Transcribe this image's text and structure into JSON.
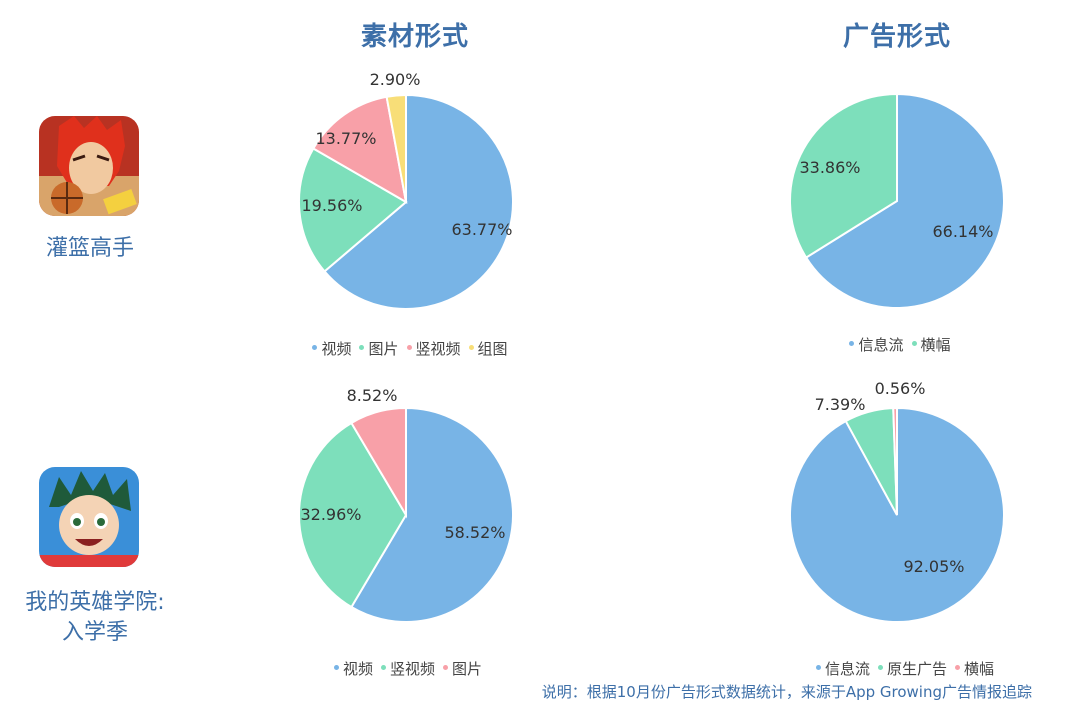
{
  "headers": {
    "material": "素材形式",
    "ad_form": "广告形式"
  },
  "games": [
    {
      "name": "灌篮高手",
      "icon": "slam-dunk-app-icon"
    },
    {
      "name_line1": "我的英雄学院:",
      "name_line2": "入学季",
      "icon": "my-hero-academia-app-icon"
    }
  ],
  "footnote": "说明：根据10月份广告形式数据统计，来源于App Growing广告情报追踪",
  "colors": {
    "视频": "#78b4e6",
    "信息流": "#78b4e6",
    "图片": "#7ddfbb",
    "横幅": "#7ddfbb",
    "竖视频": "#f8a0a8",
    "组图": "#f8de78",
    "原生广告": "#7ddfbb"
  },
  "chart_data": [
    {
      "type": "pie",
      "id": "pie-1",
      "categories": [
        "视频",
        "图片",
        "竖视频",
        "组图"
      ],
      "values": [
        63.77,
        19.56,
        13.77,
        2.9
      ],
      "labels": [
        "63.77%",
        "19.56%",
        "13.77%",
        "2.90%"
      ],
      "slice_colors": [
        "#78b4e6",
        "#7ddfbb",
        "#f8a0a8",
        "#f8de78"
      ],
      "legend": [
        "视频",
        "图片",
        "竖视频",
        "组图"
      ],
      "legend_colors": [
        "#78b4e6",
        "#7ddfbb",
        "#f8a0a8",
        "#f8de78"
      ]
    },
    {
      "type": "pie",
      "id": "pie-2",
      "categories": [
        "信息流",
        "横幅"
      ],
      "values": [
        66.14,
        33.86
      ],
      "labels": [
        "66.14%",
        "33.86%"
      ],
      "slice_colors": [
        "#78b4e6",
        "#7ddfbb"
      ],
      "legend": [
        "信息流",
        "横幅"
      ],
      "legend_colors": [
        "#78b4e6",
        "#7ddfbb"
      ]
    },
    {
      "type": "pie",
      "id": "pie-3",
      "categories": [
        "视频",
        "竖视频",
        "图片"
      ],
      "values": [
        58.52,
        32.96,
        8.52
      ],
      "labels": [
        "58.52%",
        "32.96%",
        "8.52%"
      ],
      "slice_colors": [
        "#78b4e6",
        "#7ddfbb",
        "#f8a0a8"
      ],
      "legend": [
        "视频",
        "竖视频",
        "图片"
      ],
      "legend_colors": [
        "#78b4e6",
        "#7ddfbb",
        "#f8a0a8"
      ]
    },
    {
      "type": "pie",
      "id": "pie-4",
      "categories": [
        "信息流",
        "原生广告",
        "横幅"
      ],
      "values": [
        92.05,
        7.39,
        0.56
      ],
      "labels": [
        "92.05%",
        "7.39%",
        "0.56%"
      ],
      "slice_colors": [
        "#78b4e6",
        "#7ddfbb",
        "#f8a0a8"
      ],
      "legend": [
        "信息流",
        "原生广告",
        "横幅"
      ],
      "legend_colors": [
        "#78b4e6",
        "#7ddfbb",
        "#f8a0a8"
      ]
    }
  ]
}
